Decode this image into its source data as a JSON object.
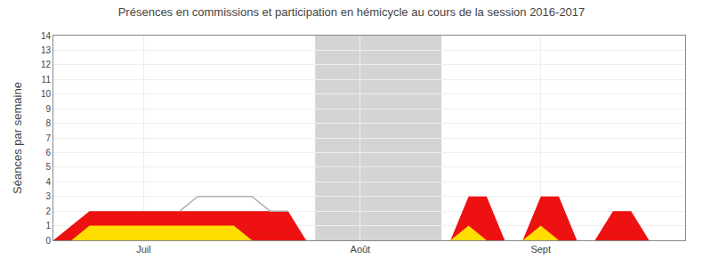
{
  "chart_data": {
    "type": "area",
    "title": "Présences en commissions et participation en hémicycle au cours de la session 2016-2017",
    "y_label": "Séances par semaine",
    "x": [
      0,
      1,
      2,
      3,
      4,
      5,
      6,
      7,
      8,
      9,
      10,
      11,
      12,
      13,
      14,
      14.5,
      21.5,
      22,
      23,
      24,
      25,
      26,
      27,
      28,
      29,
      30,
      31,
      32,
      33,
      34,
      35
    ],
    "xlim": [
      0,
      35
    ],
    "xticks": [
      {
        "value": 5,
        "label": "Juil"
      },
      {
        "value": 17,
        "label": "Août"
      },
      {
        "value": 27,
        "label": "Sept"
      }
    ],
    "ylim": [
      0,
      14
    ],
    "yticks": [
      0,
      1,
      2,
      3,
      4,
      5,
      6,
      7,
      8,
      9,
      10,
      11,
      12,
      13,
      14
    ],
    "grid": true,
    "series": [
      {
        "color": "#ee1111",
        "values": [
          0,
          1,
          2,
          2,
          2,
          2,
          2,
          2,
          2,
          2,
          2,
          2,
          2,
          2,
          0,
          0,
          0,
          0,
          3,
          3,
          0,
          0,
          3,
          3,
          0,
          0,
          2,
          2,
          0,
          0,
          0
        ]
      },
      {
        "color": "#ffdd00",
        "values": [
          0,
          0,
          1,
          1,
          1,
          1,
          1,
          1,
          1,
          1,
          1,
          0,
          0,
          0,
          0,
          0,
          0,
          0,
          1,
          0,
          0,
          0,
          1,
          0,
          0,
          0,
          0,
          0,
          0,
          0,
          0
        ]
      },
      {
        "type": "line",
        "color": "#b0b0b0",
        "x": [
          7,
          8,
          9,
          10,
          11,
          12,
          13
        ],
        "values": [
          2,
          3,
          3,
          3,
          3,
          2,
          2
        ]
      }
    ],
    "shaded": [
      {
        "x0": 14.5,
        "x1": 21.5,
        "color": "#b0b0b0"
      }
    ]
  }
}
